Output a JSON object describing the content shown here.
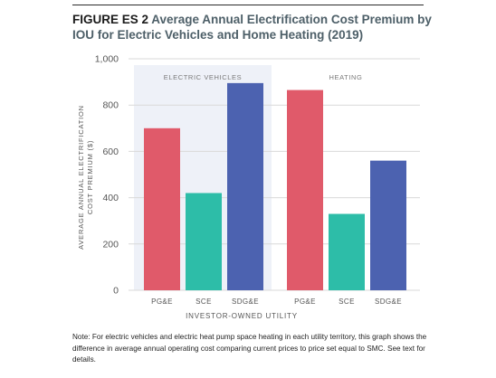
{
  "figure": {
    "label": "FIGURE ES 2",
    "title": "Average Annual Electrification Cost Premium by IOU for Electric Vehicles and Home Heating (2019)"
  },
  "note": "Note: For electric vehicles and electric heat pump space heating in each utility territory, this graph shows the difference in average annual operating cost comparing current prices to price set equal to SMC. See text for details.",
  "chart_data": {
    "type": "bar",
    "title": "Average Annual Electrification Cost Premium by IOU for Electric Vehicles and Home Heating (2019)",
    "xlabel": "INVESTOR-OWNED UTILITY",
    "ylabel_lines": [
      "AVERAGE ANNUAL ELECTRIFICATION",
      "COST PREMIUM ($)"
    ],
    "ylim": [
      0,
      1000
    ],
    "yticks": [
      0,
      200,
      400,
      600,
      800,
      1000
    ],
    "ytick_labels": [
      "0",
      "200",
      "400",
      "600",
      "800",
      "1,000"
    ],
    "grid": true,
    "groups": [
      {
        "name": "ELECTRIC VEHICLES",
        "categories": [
          "PG&E",
          "SCE",
          "SDG&E"
        ],
        "values": [
          700,
          420,
          895
        ],
        "colors": [
          "#e05a6a",
          "#2dbda8",
          "#4c62b0"
        ]
      },
      {
        "name": "HEATING",
        "categories": [
          "PG&E",
          "SCE",
          "SDG&E"
        ],
        "values": [
          865,
          330,
          560
        ],
        "colors": [
          "#e05a6a",
          "#2dbda8",
          "#4c62b0"
        ]
      }
    ],
    "colors": {
      "shade_panel": "#eef1f8",
      "grid": "#d9d9d9",
      "axis_text": "#555555"
    }
  }
}
